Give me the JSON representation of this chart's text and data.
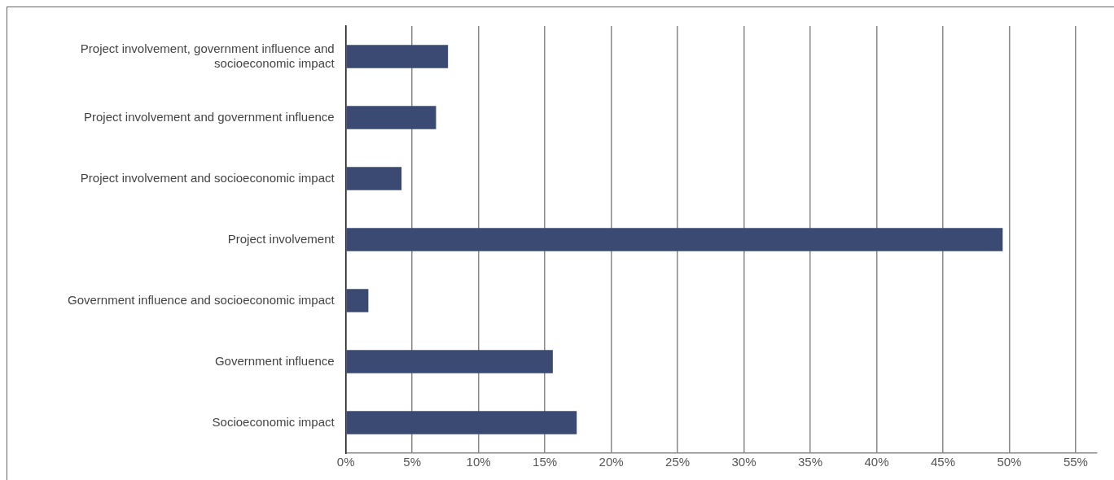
{
  "chart_data": {
    "type": "bar",
    "orientation": "horizontal",
    "categories": [
      "Project involvement, government influence and socioeconomic impact",
      "Project involvement and government influence",
      "Project involvement and socioeconomic impact",
      "Project involvement",
      "Government influence and socioeconomic impact",
      "Government influence",
      "Socioeconomic impact"
    ],
    "values": [
      7.7,
      6.8,
      4.2,
      49.5,
      1.7,
      15.6,
      17.4
    ],
    "color": "#3b4a72",
    "xlim": [
      0,
      56.6
    ],
    "xticks": [
      {
        "value": 0,
        "label": "0%"
      },
      {
        "value": 5,
        "label": "5%"
      },
      {
        "value": 10,
        "label": "10%"
      },
      {
        "value": 15,
        "label": "15%"
      },
      {
        "value": 20,
        "label": "20%"
      },
      {
        "value": 25,
        "label": "25%"
      },
      {
        "value": 30,
        "label": "30%"
      },
      {
        "value": 35,
        "label": "35%"
      },
      {
        "value": 40,
        "label": "40%"
      },
      {
        "value": 45,
        "label": "45%"
      },
      {
        "value": 50,
        "label": "50%"
      },
      {
        "value": 55,
        "label": "55%"
      }
    ],
    "grid": "x"
  }
}
